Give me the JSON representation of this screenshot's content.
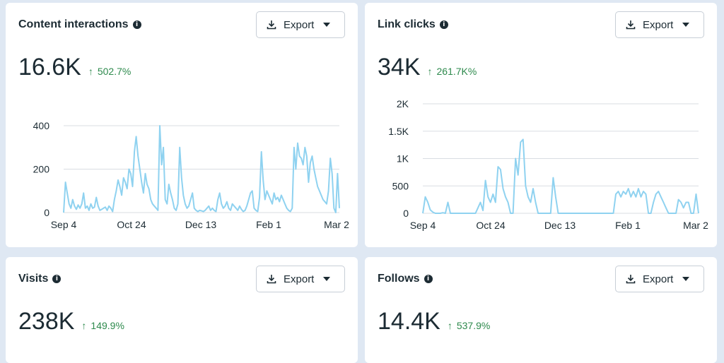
{
  "cards": [
    {
      "title": "Content interactions",
      "info_icon": "info-icon",
      "export_label": "Export",
      "value": "16.6K",
      "change": "502.7%",
      "chart_data": {
        "type": "line",
        "x_ticks": [
          "Sep 4",
          "Oct 24",
          "Dec 13",
          "Feb 1",
          "Mar 2"
        ],
        "y_ticks": [
          "400",
          "200",
          "0"
        ],
        "ylim": [
          0,
          400
        ],
        "series": [
          {
            "color": "#8fd2f0",
            "values": [
              0,
              140,
              90,
              40,
              20,
              60,
              30,
              15,
              35,
              20,
              40,
              90,
              20,
              30,
              10,
              40,
              20,
              25,
              70,
              30,
              10,
              15,
              20,
              25,
              10,
              30,
              20,
              5,
              60,
              100,
              150,
              120,
              80,
              160,
              140,
              110,
              200,
              180,
              120,
              280,
              350,
              260,
              200,
              140,
              90,
              180,
              130,
              110,
              60,
              40,
              30,
              20,
              10,
              400,
              220,
              300,
              60,
              40,
              130,
              90,
              60,
              20,
              10,
              40,
              300,
              160,
              80,
              40,
              20,
              30,
              60,
              90,
              20,
              10,
              5,
              10,
              8,
              5,
              10,
              20,
              30,
              10,
              20,
              10,
              5,
              60,
              90,
              40,
              20,
              30,
              50,
              20,
              10,
              40,
              30,
              20,
              10,
              30,
              15,
              5,
              10,
              30,
              60,
              90,
              100,
              20,
              10,
              5,
              70,
              280,
              150,
              60,
              100,
              80,
              60,
              40,
              90,
              60,
              70,
              50,
              80,
              60,
              40,
              20,
              10,
              5,
              20,
              300,
              200,
              320,
              260,
              250,
              220,
              300,
              260,
              140,
              230,
              260,
              200,
              160,
              120,
              100,
              80,
              60,
              50,
              40,
              100,
              250,
              180,
              20,
              0,
              180,
              20
            ]
          }
        ]
      }
    },
    {
      "title": "Link clicks",
      "info_icon": "info-icon",
      "export_label": "Export",
      "value": "34K",
      "change": "261.7K%",
      "chart_data": {
        "type": "line",
        "x_ticks": [
          "Sep 4",
          "Oct 24",
          "Dec 13",
          "Feb 1",
          "Mar 2"
        ],
        "y_ticks": [
          "2K",
          "1.5K",
          "1K",
          "500",
          "0"
        ],
        "ylim": [
          0,
          2000
        ],
        "series": [
          {
            "color": "#8fd2f0",
            "values": [
              0,
              300,
              200,
              60,
              20,
              0,
              0,
              0,
              10,
              0,
              200,
              0,
              0,
              0,
              0,
              0,
              0,
              0,
              0,
              0,
              0,
              0,
              100,
              200,
              50,
              600,
              300,
              200,
              350,
              200,
              850,
              800,
              450,
              300,
              200,
              0,
              0,
              1000,
              700,
              1300,
              1350,
              500,
              300,
              200,
              450,
              200,
              0,
              0,
              0,
              0,
              0,
              0,
              650,
              300,
              0,
              0,
              0,
              0,
              0,
              0,
              0,
              0,
              0,
              0,
              0,
              0,
              0,
              0,
              0,
              0,
              0,
              0,
              0,
              0,
              0,
              0,
              0,
              350,
              400,
              300,
              400,
              350,
              450,
              300,
              400,
              300,
              450,
              300,
              400,
              350,
              0,
              0,
              200,
              350,
              400,
              300,
              200,
              100,
              0,
              0,
              0,
              0,
              250,
              200,
              100,
              200,
              200,
              0,
              0,
              350,
              0
            ]
          }
        ]
      }
    },
    {
      "title": "Visits",
      "info_icon": "info-icon",
      "export_label": "Export",
      "value": "238K",
      "change": "149.9%"
    },
    {
      "title": "Follows",
      "info_icon": "info-icon",
      "export_label": "Export",
      "value": "14.4K",
      "change": "537.9%"
    }
  ],
  "colors": {
    "positive": "#2e8a4d",
    "line": "#8fd2f0",
    "grid": "#d9dde2"
  }
}
